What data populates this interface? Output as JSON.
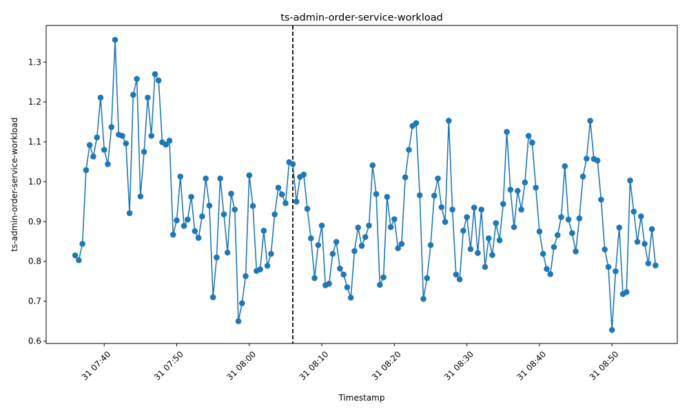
{
  "chart_data": {
    "type": "line",
    "title": "ts-admin-order-service-workload",
    "xlabel": "Timestamp",
    "ylabel": "ts-admin-order-service-workload",
    "x_axis_type": "datetime",
    "x_start": "31 07:36",
    "x_step_minutes": 0.5,
    "xlim": [
      "31 07:32",
      "31 08:59"
    ],
    "ylim": [
      0.594,
      1.392
    ],
    "x_ticks": [
      "31 07:40",
      "31 07:50",
      "31 08:00",
      "31 08:10",
      "31 08:20",
      "31 08:30",
      "31 08:40",
      "31 08:50"
    ],
    "y_ticks": [
      "0.6",
      "0.7",
      "0.8",
      "0.9",
      "1.0",
      "1.1",
      "1.2",
      "1.3"
    ],
    "y_tick_values": [
      0.6,
      0.7,
      0.8,
      0.9,
      1.0,
      1.1,
      1.2,
      1.3
    ],
    "vline": {
      "x": "31 08:06",
      "style": "dashed",
      "color": "#000000"
    },
    "color": "#1f77b4",
    "grid": false,
    "series": [
      {
        "values": [
          0.815,
          0.803,
          0.844,
          1.029,
          1.092,
          1.063,
          1.111,
          1.211,
          1.08,
          1.044,
          1.137,
          1.356,
          1.118,
          1.115,
          1.096,
          0.921,
          1.218,
          1.258,
          0.963,
          1.075,
          1.211,
          1.115,
          1.27,
          1.254,
          1.099,
          1.093,
          1.103,
          0.867,
          0.903,
          1.013,
          0.889,
          0.905,
          0.962,
          0.876,
          0.859,
          0.913,
          1.008,
          0.94,
          0.71,
          0.81,
          1.008,
          0.918,
          0.822,
          0.97,
          0.93,
          0.65,
          0.695,
          0.763,
          1.016,
          0.939,
          0.776,
          0.78,
          0.877,
          0.789,
          0.819,
          0.918,
          0.985,
          0.968,
          0.946,
          1.049,
          1.044,
          0.95,
          1.012,
          1.018,
          0.932,
          0.858,
          0.758,
          0.841,
          0.89,
          0.74,
          0.744,
          0.819,
          0.849,
          0.782,
          0.767,
          0.735,
          0.709,
          0.826,
          0.885,
          0.839,
          0.861,
          0.89,
          1.041,
          0.969,
          0.741,
          0.76,
          0.962,
          0.886,
          0.906,
          0.833,
          0.844,
          1.011,
          1.08,
          1.14,
          1.147,
          0.966,
          0.706,
          0.758,
          0.841,
          0.965,
          1.008,
          0.936,
          0.899,
          1.153,
          0.93,
          0.767,
          0.755,
          0.877,
          0.911,
          0.831,
          0.935,
          0.821,
          0.93,
          0.786,
          0.858,
          0.816,
          0.896,
          0.853,
          0.944,
          1.125,
          0.98,
          0.886,
          0.977,
          0.93,
          0.998,
          1.115,
          1.098,
          0.985,
          0.875,
          0.819,
          0.781,
          0.768,
          0.836,
          0.866,
          0.911,
          1.039,
          0.905,
          0.871,
          0.825,
          0.908,
          1.013,
          1.058,
          1.153,
          1.057,
          1.053,
          0.955,
          0.83,
          0.786,
          0.628,
          0.775,
          0.885,
          0.718,
          0.723,
          1.003,
          0.925,
          0.849,
          0.913,
          0.844,
          0.795,
          0.881,
          0.79
        ]
      }
    ]
  }
}
